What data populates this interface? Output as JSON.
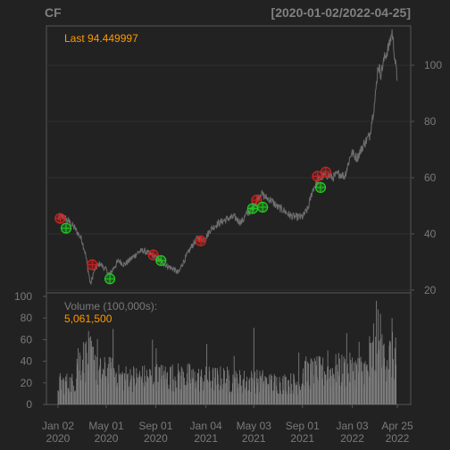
{
  "header": {
    "symbol": "CF",
    "range": "[2020-01-02/2022-04-25]"
  },
  "colors": {
    "background": "#222222",
    "panel_border": "#555555",
    "grid": "#303030",
    "price_line": "#6e6e6e",
    "volume_bar": "#7c7c7c",
    "label_accent": "#ff9900",
    "muted_text": "#7a7a7a",
    "sell_marker": "#cc2222",
    "buy_marker": "#22cc22"
  },
  "chart_data": [
    {
      "type": "line",
      "panel": "price",
      "annotation_label": "Last",
      "annotation_value": "94.449997",
      "ylim": [
        19,
        114
      ],
      "y_ticks": [
        20,
        40,
        60,
        80,
        100
      ],
      "grid": true,
      "series": [
        {
          "points": [
            [
              "2020-01-02",
              45.5
            ],
            [
              "2020-01-15",
              46.0
            ],
            [
              "2020-02-01",
              44.0
            ],
            [
              "2020-02-15",
              41.5
            ],
            [
              "2020-03-01",
              38.0
            ],
            [
              "2020-03-10",
              33.0
            ],
            [
              "2020-03-18",
              26.0
            ],
            [
              "2020-03-23",
              22.0
            ],
            [
              "2020-04-01",
              27.0
            ],
            [
              "2020-04-15",
              29.5
            ],
            [
              "2020-05-01",
              27.0
            ],
            [
              "2020-05-10",
              25.5
            ],
            [
              "2020-05-20",
              28.0
            ],
            [
              "2020-06-01",
              30.5
            ],
            [
              "2020-06-15",
              29.0
            ],
            [
              "2020-07-01",
              31.0
            ],
            [
              "2020-07-20",
              33.5
            ],
            [
              "2020-08-01",
              34.0
            ],
            [
              "2020-08-15",
              33.0
            ],
            [
              "2020-08-25",
              32.5
            ],
            [
              "2020-09-05",
              31.0
            ],
            [
              "2020-09-15",
              30.0
            ],
            [
              "2020-10-01",
              28.5
            ],
            [
              "2020-10-15",
              27.5
            ],
            [
              "2020-10-28",
              26.0
            ],
            [
              "2020-11-05",
              29.0
            ],
            [
              "2020-11-20",
              33.0
            ],
            [
              "2020-12-01",
              36.0
            ],
            [
              "2020-12-15",
              38.5
            ],
            [
              "2021-01-01",
              38.0
            ],
            [
              "2021-01-15",
              41.5
            ],
            [
              "2021-02-01",
              43.5
            ],
            [
              "2021-02-15",
              44.5
            ],
            [
              "2021-03-01",
              45.5
            ],
            [
              "2021-03-15",
              46.0
            ],
            [
              "2021-04-01",
              44.0
            ],
            [
              "2021-04-15",
              47.0
            ],
            [
              "2021-05-01",
              49.0
            ],
            [
              "2021-05-10",
              52.0
            ],
            [
              "2021-05-20",
              54.5
            ],
            [
              "2021-06-01",
              53.0
            ],
            [
              "2021-06-15",
              52.0
            ],
            [
              "2021-07-01",
              49.5
            ],
            [
              "2021-07-15",
              48.5
            ],
            [
              "2021-08-01",
              46.5
            ],
            [
              "2021-08-15",
              46.0
            ],
            [
              "2021-09-01",
              46.0
            ],
            [
              "2021-09-15",
              49.0
            ],
            [
              "2021-09-25",
              55.0
            ],
            [
              "2021-10-01",
              57.0
            ],
            [
              "2021-10-15",
              60.0
            ],
            [
              "2021-11-01",
              61.0
            ],
            [
              "2021-11-15",
              60.0
            ],
            [
              "2021-12-01",
              61.5
            ],
            [
              "2021-12-15",
              60.5
            ],
            [
              "2022-01-01",
              69.0
            ],
            [
              "2022-01-15",
              67.0
            ],
            [
              "2022-02-01",
              72.0
            ],
            [
              "2022-02-15",
              75.0
            ],
            [
              "2022-03-01",
              88.0
            ],
            [
              "2022-03-08",
              100.0
            ],
            [
              "2022-03-15",
              97.0
            ],
            [
              "2022-03-25",
              103.0
            ],
            [
              "2022-04-05",
              107.0
            ],
            [
              "2022-04-12",
              112.0
            ],
            [
              "2022-04-18",
              104.0
            ],
            [
              "2022-04-25",
              94.449997
            ]
          ]
        }
      ],
      "sell_markers": [
        [
          "2020-01-07",
          45.5
        ],
        [
          "2020-03-27",
          29.0
        ],
        [
          "2020-08-26",
          32.5
        ],
        [
          "2020-12-22",
          37.5
        ],
        [
          "2021-05-10",
          52.0
        ],
        [
          "2021-10-08",
          60.5
        ],
        [
          "2021-10-29",
          62.0
        ]
      ],
      "buy_markers": [
        [
          "2020-01-22",
          42.0
        ],
        [
          "2020-05-10",
          24.0
        ],
        [
          "2020-09-14",
          30.5
        ],
        [
          "2021-04-30",
          49.0
        ],
        [
          "2021-05-25",
          49.5
        ],
        [
          "2021-10-16",
          56.5
        ]
      ]
    },
    {
      "type": "bar",
      "panel": "volume",
      "label": "Volume (100,000s):",
      "last_value": "5,061,500",
      "ylim": [
        0,
        100
      ],
      "y_ticks": [
        0,
        20,
        40,
        60,
        80,
        100
      ],
      "bars": [
        {
          "start": "2020-01-02",
          "end": "2020-02-15",
          "avg": 20
        },
        {
          "start": "2020-02-15",
          "end": "2020-04-10",
          "avg": 42
        },
        {
          "start": "2020-04-10",
          "end": "2020-06-01",
          "avg": 30
        },
        {
          "start": "2020-06-01",
          "end": "2020-09-01",
          "avg": 25
        },
        {
          "start": "2020-09-01",
          "end": "2020-12-01",
          "avg": 26
        },
        {
          "start": "2020-12-01",
          "end": "2021-03-01",
          "avg": 24
        },
        {
          "start": "2021-03-01",
          "end": "2021-06-01",
          "avg": 22
        },
        {
          "start": "2021-06-01",
          "end": "2021-09-01",
          "avg": 20
        },
        {
          "start": "2021-09-01",
          "end": "2021-11-15",
          "avg": 30
        },
        {
          "start": "2021-11-15",
          "end": "2022-02-15",
          "avg": 32
        },
        {
          "start": "2022-02-15",
          "end": "2022-04-25",
          "avg": 45
        }
      ],
      "spikes": [
        [
          "2020-03-18",
          68
        ],
        [
          "2020-03-23",
          63
        ],
        [
          "2020-05-18",
          70
        ],
        [
          "2020-08-24",
          60
        ],
        [
          "2020-09-02",
          52
        ],
        [
          "2021-01-06",
          56
        ],
        [
          "2021-03-15",
          45
        ],
        [
          "2021-05-03",
          71
        ],
        [
          "2021-08-23",
          48
        ],
        [
          "2021-11-03",
          50
        ],
        [
          "2021-12-20",
          66
        ],
        [
          "2022-01-20",
          58
        ],
        [
          "2022-02-25",
          75
        ],
        [
          "2022-03-04",
          96
        ],
        [
          "2022-03-08",
          88
        ],
        [
          "2022-03-14",
          84
        ],
        [
          "2022-04-12",
          80
        ],
        [
          "2022-04-21",
          62
        ]
      ]
    }
  ],
  "x_axis": {
    "ticks": [
      {
        "date": "2020-01-02",
        "line1": "Jan 02",
        "line2": "2020"
      },
      {
        "date": "2020-05-01",
        "line1": "May 01",
        "line2": "2020"
      },
      {
        "date": "2020-09-01",
        "line1": "Sep 01",
        "line2": "2020"
      },
      {
        "date": "2021-01-04",
        "line1": "Jan 04",
        "line2": "2021"
      },
      {
        "date": "2021-05-03",
        "line1": "May 03",
        "line2": "2021"
      },
      {
        "date": "2021-09-01",
        "line1": "Sep 01",
        "line2": "2021"
      },
      {
        "date": "2022-01-03",
        "line1": "Jan 03",
        "line2": "2022"
      },
      {
        "date": "2022-04-25",
        "line1": "Apr 25",
        "line2": "2022"
      }
    ]
  }
}
